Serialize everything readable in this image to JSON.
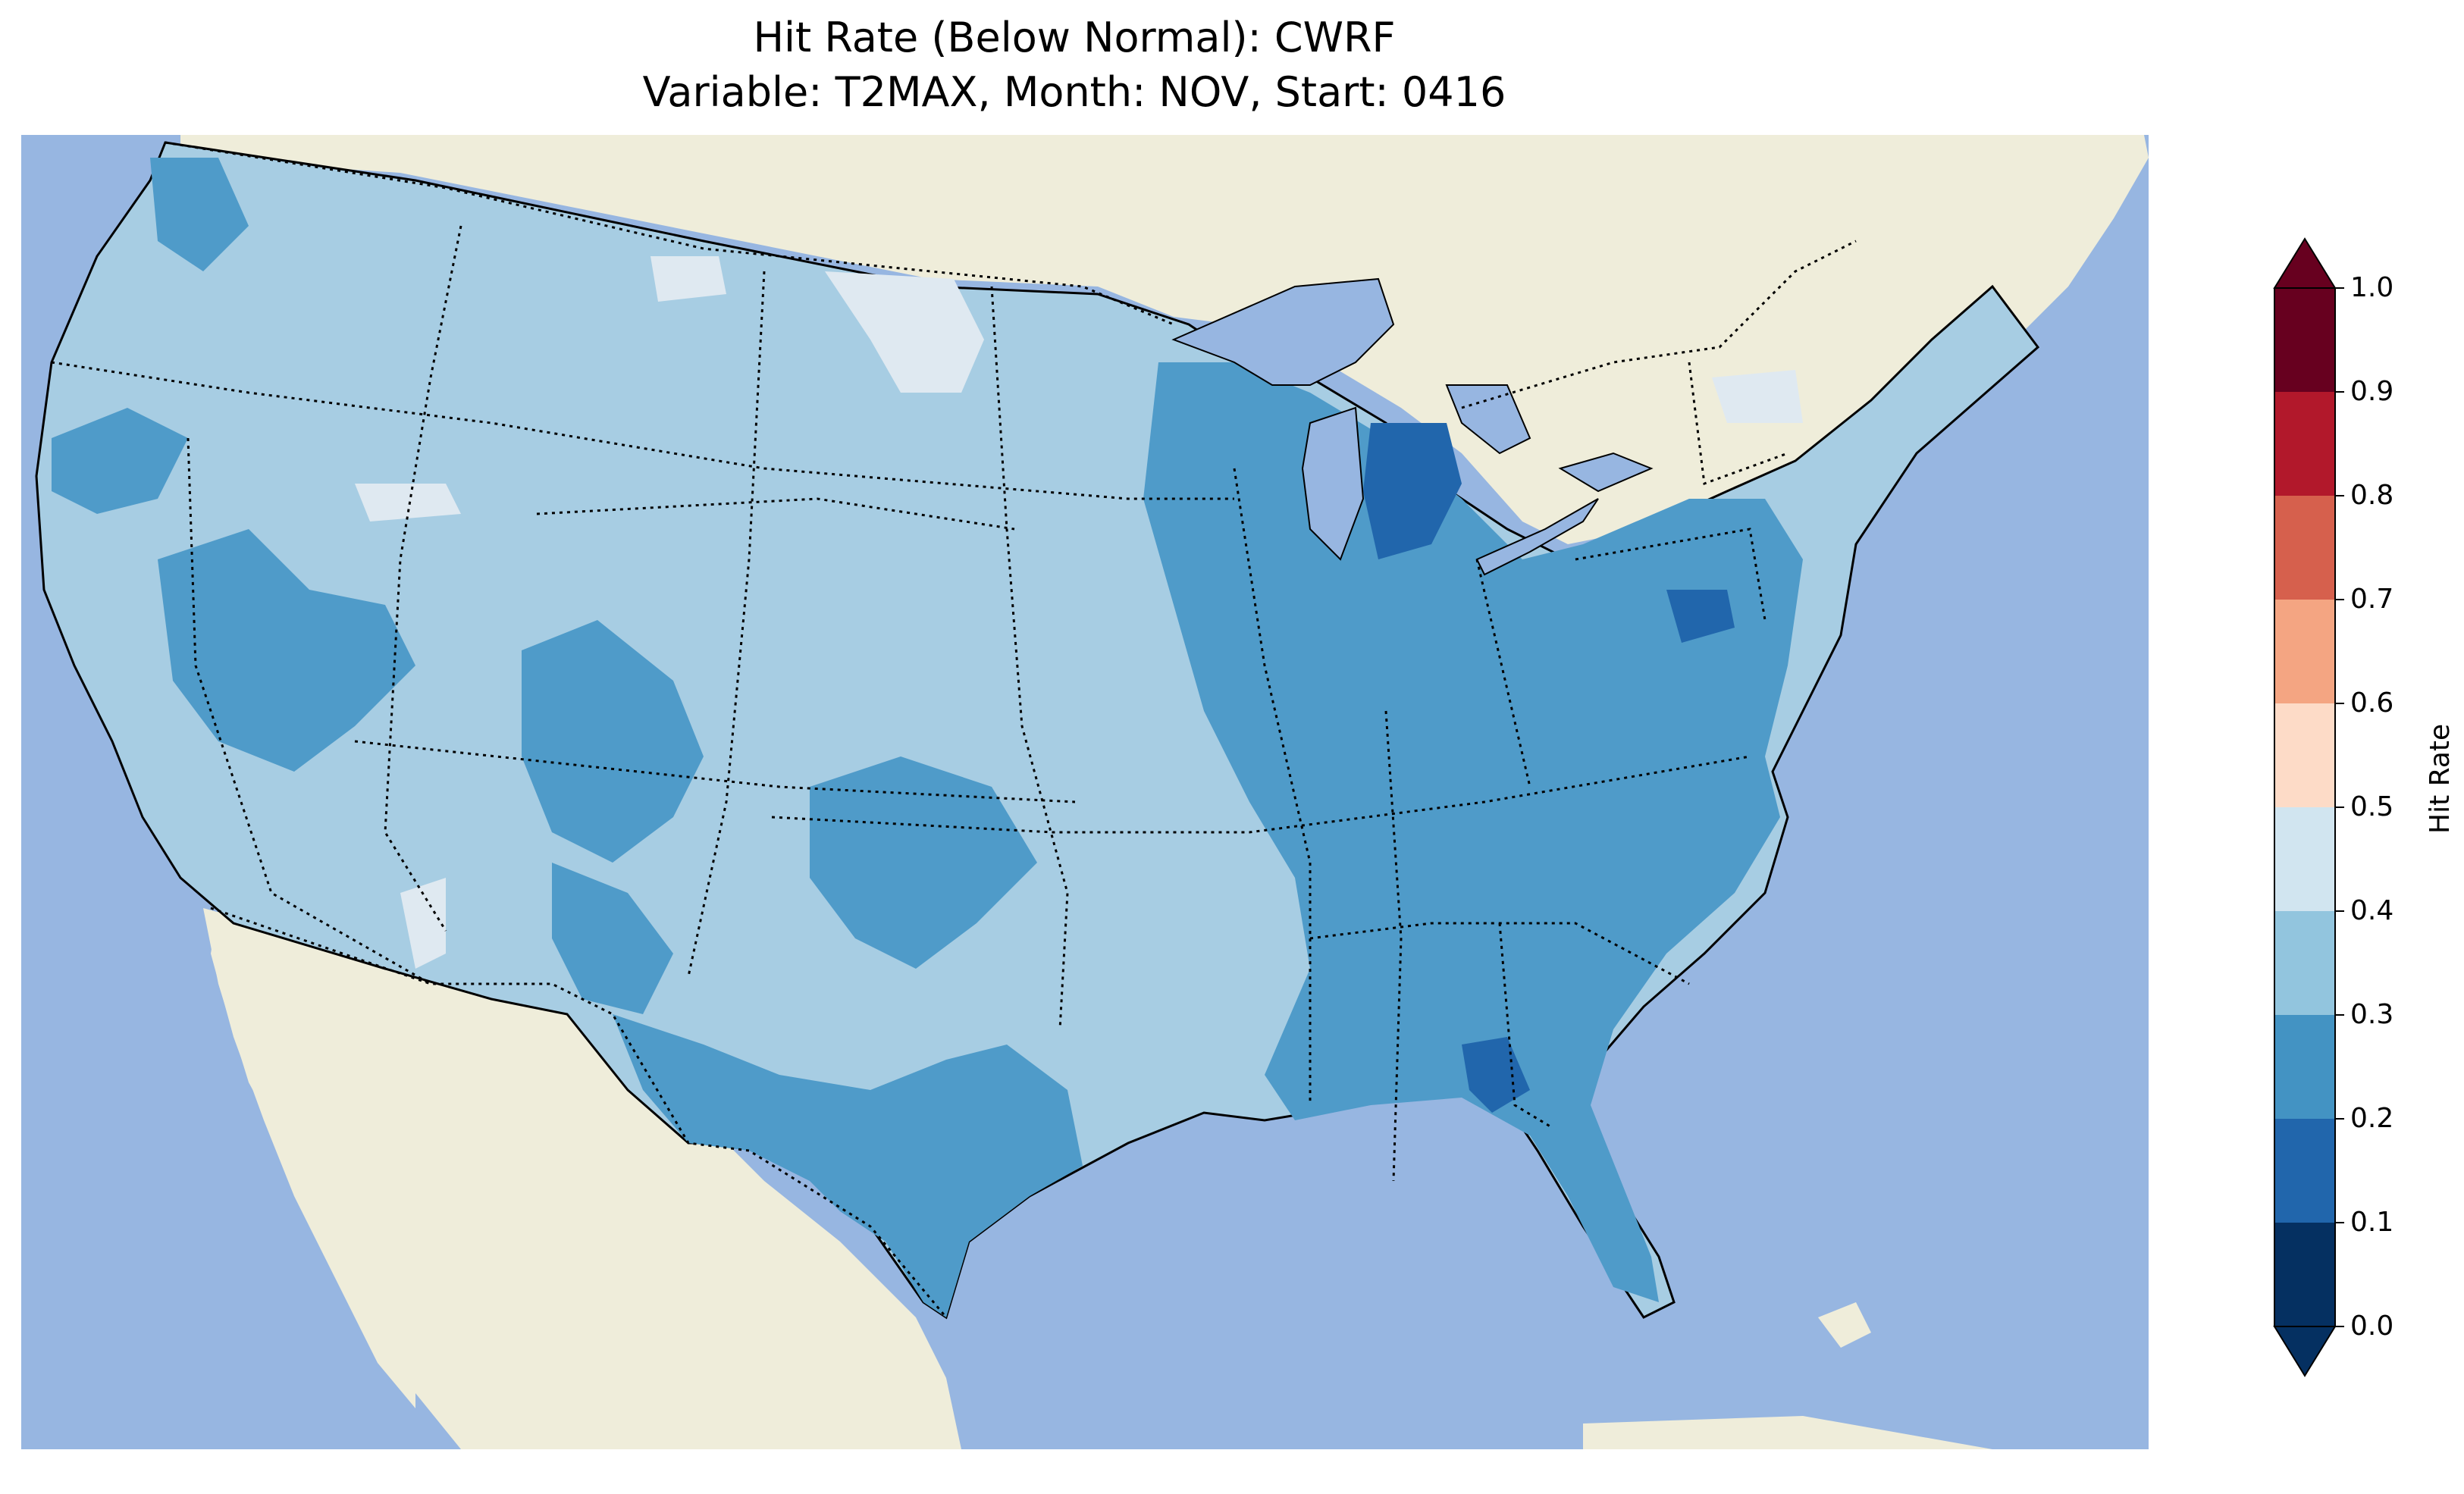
{
  "title": {
    "line1": "Hit Rate (Below Normal): CWRF",
    "line2": "Variable: T2MAX, Month: NOV, Start: 0416"
  },
  "map": {
    "projection": "PlateCarree",
    "extent_lon": [
      -125,
      -66
    ],
    "extent_lat": [
      23,
      50
    ],
    "ocean_color": "#97b6e1",
    "land_color": "#efedda",
    "lake_color": "#97b6e1",
    "boundaries": [
      "coastlines",
      "country borders",
      "state borders (dotted)"
    ],
    "field_description": "CONUS grid shaded mostly 0.3-0.4 (west, plains) with 0.2-0.3 over central/eastern US, Texas and Southeast; small 0.1-0.2 pockets in Michigan, Maryland and Georgia; scattered 0.4-0.5 patches in Montana/Dakotas/Nevada"
  },
  "colorbar": {
    "label": "Hit Rate",
    "ticks": [
      "0.0",
      "0.1",
      "0.2",
      "0.3",
      "0.4",
      "0.5",
      "0.6",
      "0.7",
      "0.8",
      "0.9",
      "1.0"
    ],
    "bins": [
      {
        "range": [
          0.0,
          0.1
        ],
        "color": "#053061"
      },
      {
        "range": [
          0.1,
          0.2
        ],
        "color": "#2166ac"
      },
      {
        "range": [
          0.2,
          0.3
        ],
        "color": "#4393c3"
      },
      {
        "range": [
          0.3,
          0.4
        ],
        "color": "#92c5de"
      },
      {
        "range": [
          0.4,
          0.5
        ],
        "color": "#d1e5f0"
      },
      {
        "range": [
          0.5,
          0.6
        ],
        "color": "#fddbc7"
      },
      {
        "range": [
          0.6,
          0.7
        ],
        "color": "#f4a582"
      },
      {
        "range": [
          0.7,
          0.8
        ],
        "color": "#d6604d"
      },
      {
        "range": [
          0.8,
          0.9
        ],
        "color": "#b2182b"
      },
      {
        "range": [
          0.9,
          1.0
        ],
        "color": "#67001f"
      }
    ],
    "extend": "both"
  }
}
